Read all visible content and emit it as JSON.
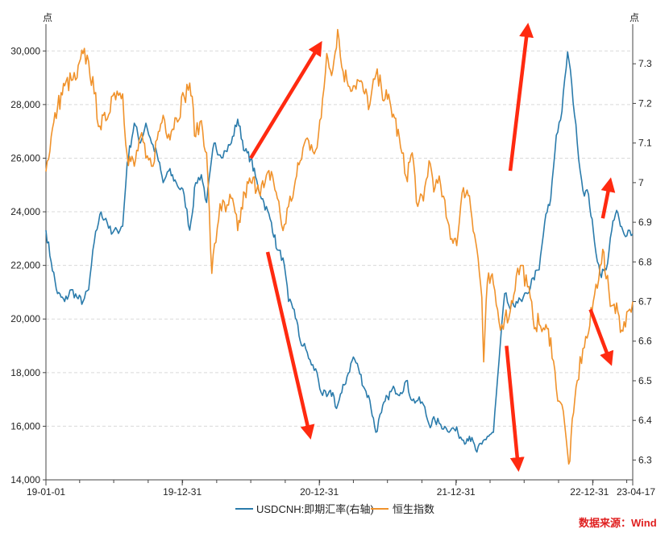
{
  "chart_data": {
    "type": "line",
    "left_unit": "点",
    "right_unit": "点",
    "left_axis": {
      "min": 14000,
      "max": 31000,
      "ticks": [
        {
          "v": 14000,
          "label": "14,000"
        },
        {
          "v": 16000,
          "label": "16,000"
        },
        {
          "v": 18000,
          "label": "18,000"
        },
        {
          "v": 20000,
          "label": "20,000"
        },
        {
          "v": 22000,
          "label": "22,000"
        },
        {
          "v": 24000,
          "label": "24,000"
        },
        {
          "v": 26000,
          "label": "26,000"
        },
        {
          "v": 28000,
          "label": "28,000"
        },
        {
          "v": 30000,
          "label": "30,000"
        }
      ]
    },
    "right_axis": {
      "min": 6.25,
      "max": 7.4,
      "ticks": [
        {
          "v": 6.3,
          "label": "6.3"
        },
        {
          "v": 6.4,
          "label": "6.4"
        },
        {
          "v": 6.5,
          "label": "6.5"
        },
        {
          "v": 6.6,
          "label": "6.6"
        },
        {
          "v": 6.7,
          "label": "6.7"
        },
        {
          "v": 6.8,
          "label": "6.8"
        },
        {
          "v": 6.9,
          "label": "6.9"
        },
        {
          "v": 7,
          "label": "7"
        },
        {
          "v": 7.1,
          "label": "7.1"
        },
        {
          "v": 7.2,
          "label": "7.2"
        },
        {
          "v": 7.3,
          "label": "7.3"
        }
      ]
    },
    "x_axis": {
      "start": "2019-01-01",
      "end": "2023-04-17",
      "ticks": [
        {
          "date": "2019-01-01",
          "label": "19-01-01"
        },
        {
          "date": "2019-12-31",
          "label": "19-12-31"
        },
        {
          "date": "2020-12-31",
          "label": "20-12-31"
        },
        {
          "date": "2021-12-31",
          "label": "21-12-31"
        },
        {
          "date": "2022-12-31",
          "label": "22-12-31"
        },
        {
          "date": "2023-04-17",
          "label": "23-04-17"
        }
      ]
    },
    "grid": "horizontal-dashed",
    "legend_position": "bottom",
    "series": [
      {
        "name": "USDCNH:即期汇率(右轴)",
        "axis": "right",
        "color": "#2a7bab",
        "points": [
          [
            "2019-01-01",
            6.88
          ],
          [
            "2019-01-15",
            6.8
          ],
          [
            "2019-02-01",
            6.72
          ],
          [
            "2019-02-20",
            6.7
          ],
          [
            "2019-03-10",
            6.73
          ],
          [
            "2019-03-25",
            6.71
          ],
          [
            "2019-04-10",
            6.7
          ],
          [
            "2019-04-25",
            6.73
          ],
          [
            "2019-05-10",
            6.85
          ],
          [
            "2019-05-25",
            6.92
          ],
          [
            "2019-06-10",
            6.91
          ],
          [
            "2019-06-25",
            6.87
          ],
          [
            "2019-07-10",
            6.88
          ],
          [
            "2019-07-25",
            6.89
          ],
          [
            "2019-08-06",
            7.05
          ],
          [
            "2019-08-25",
            7.15
          ],
          [
            "2019-09-10",
            7.1
          ],
          [
            "2019-09-25",
            7.15
          ],
          [
            "2019-10-10",
            7.1
          ],
          [
            "2019-10-25",
            7.07
          ],
          [
            "2019-11-10",
            7.0
          ],
          [
            "2019-11-25",
            7.03
          ],
          [
            "2019-12-15",
            7.0
          ],
          [
            "2020-01-05",
            6.97
          ],
          [
            "2020-01-20",
            6.88
          ],
          [
            "2020-02-05",
            7.0
          ],
          [
            "2020-02-20",
            7.02
          ],
          [
            "2020-03-05",
            6.95
          ],
          [
            "2020-03-25",
            7.1
          ],
          [
            "2020-04-10",
            7.07
          ],
          [
            "2020-04-25",
            7.08
          ],
          [
            "2020-05-10",
            7.1
          ],
          [
            "2020-05-27",
            7.16
          ],
          [
            "2020-06-15",
            7.08
          ],
          [
            "2020-07-01",
            7.06
          ],
          [
            "2020-07-20",
            6.99
          ],
          [
            "2020-08-05",
            6.95
          ],
          [
            "2020-08-25",
            6.9
          ],
          [
            "2020-09-10",
            6.83
          ],
          [
            "2020-09-25",
            6.81
          ],
          [
            "2020-10-10",
            6.7
          ],
          [
            "2020-10-25",
            6.68
          ],
          [
            "2020-11-10",
            6.6
          ],
          [
            "2020-11-25",
            6.58
          ],
          [
            "2020-12-10",
            6.54
          ],
          [
            "2020-12-25",
            6.52
          ],
          [
            "2021-01-05",
            6.47
          ],
          [
            "2021-01-20",
            6.46
          ],
          [
            "2021-02-05",
            6.47
          ],
          [
            "2021-02-15",
            6.43
          ],
          [
            "2021-03-01",
            6.47
          ],
          [
            "2021-03-15",
            6.51
          ],
          [
            "2021-04-01",
            6.56
          ],
          [
            "2021-04-15",
            6.53
          ],
          [
            "2021-05-01",
            6.48
          ],
          [
            "2021-05-15",
            6.45
          ],
          [
            "2021-05-31",
            6.37
          ],
          [
            "2021-06-15",
            6.42
          ],
          [
            "2021-07-01",
            6.46
          ],
          [
            "2021-07-20",
            6.48
          ],
          [
            "2021-08-05",
            6.47
          ],
          [
            "2021-08-20",
            6.5
          ],
          [
            "2021-09-05",
            6.45
          ],
          [
            "2021-09-20",
            6.45
          ],
          [
            "2021-10-05",
            6.44
          ],
          [
            "2021-10-20",
            6.39
          ],
          [
            "2021-11-05",
            6.4
          ],
          [
            "2021-11-20",
            6.39
          ],
          [
            "2021-12-05",
            6.38
          ],
          [
            "2021-12-20",
            6.38
          ],
          [
            "2022-01-05",
            6.37
          ],
          [
            "2022-01-20",
            6.35
          ],
          [
            "2022-02-05",
            6.36
          ],
          [
            "2022-02-25",
            6.32
          ],
          [
            "2022-03-10",
            6.34
          ],
          [
            "2022-03-25",
            6.36
          ],
          [
            "2022-04-10",
            6.37
          ],
          [
            "2022-04-25",
            6.55
          ],
          [
            "2022-05-10",
            6.72
          ],
          [
            "2022-05-25",
            6.68
          ],
          [
            "2022-06-10",
            6.7
          ],
          [
            "2022-06-25",
            6.7
          ],
          [
            "2022-07-10",
            6.72
          ],
          [
            "2022-07-25",
            6.76
          ],
          [
            "2022-08-10",
            6.78
          ],
          [
            "2022-08-25",
            6.9
          ],
          [
            "2022-09-10",
            6.96
          ],
          [
            "2022-09-25",
            7.12
          ],
          [
            "2022-10-10",
            7.18
          ],
          [
            "2022-10-25",
            7.33
          ],
          [
            "2022-11-05",
            7.25
          ],
          [
            "2022-11-20",
            7.1
          ],
          [
            "2022-12-05",
            6.98
          ],
          [
            "2022-12-20",
            6.97
          ],
          [
            "2023-01-05",
            6.85
          ],
          [
            "2023-01-20",
            6.77
          ],
          [
            "2023-02-05",
            6.78
          ],
          [
            "2023-02-20",
            6.88
          ],
          [
            "2023-03-05",
            6.93
          ],
          [
            "2023-03-15",
            6.89
          ],
          [
            "2023-03-25",
            6.87
          ],
          [
            "2023-04-05",
            6.88
          ],
          [
            "2023-04-17",
            6.87
          ]
        ]
      },
      {
        "name": "恒生指数",
        "axis": "left",
        "color": "#f0922b",
        "points": [
          [
            "2019-01-01",
            25500
          ],
          [
            "2019-01-15",
            26800
          ],
          [
            "2019-02-01",
            27900
          ],
          [
            "2019-02-20",
            28700
          ],
          [
            "2019-03-10",
            28900
          ],
          [
            "2019-03-25",
            29000
          ],
          [
            "2019-04-10",
            29900
          ],
          [
            "2019-04-25",
            29600
          ],
          [
            "2019-05-10",
            28400
          ],
          [
            "2019-05-25",
            27200
          ],
          [
            "2019-06-10",
            27400
          ],
          [
            "2019-06-25",
            28300
          ],
          [
            "2019-07-10",
            28500
          ],
          [
            "2019-07-25",
            28400
          ],
          [
            "2019-08-06",
            26100
          ],
          [
            "2019-08-25",
            25700
          ],
          [
            "2019-09-10",
            26800
          ],
          [
            "2019-09-25",
            26000
          ],
          [
            "2019-10-10",
            25700
          ],
          [
            "2019-10-25",
            26700
          ],
          [
            "2019-11-10",
            27600
          ],
          [
            "2019-11-25",
            26900
          ],
          [
            "2019-12-15",
            27500
          ],
          [
            "2020-01-05",
            28300
          ],
          [
            "2020-01-20",
            28800
          ],
          [
            "2020-02-05",
            26800
          ],
          [
            "2020-02-20",
            27400
          ],
          [
            "2020-03-05",
            26200
          ],
          [
            "2020-03-19",
            21700
          ],
          [
            "2020-04-10",
            24300
          ],
          [
            "2020-04-25",
            24000
          ],
          [
            "2020-05-10",
            24500
          ],
          [
            "2020-05-27",
            23300
          ],
          [
            "2020-06-15",
            24700
          ],
          [
            "2020-07-01",
            25100
          ],
          [
            "2020-07-20",
            25000
          ],
          [
            "2020-08-05",
            24900
          ],
          [
            "2020-08-25",
            25500
          ],
          [
            "2020-09-10",
            24500
          ],
          [
            "2020-09-25",
            23300
          ],
          [
            "2020-10-10",
            24200
          ],
          [
            "2020-10-25",
            24900
          ],
          [
            "2020-11-10",
            25900
          ],
          [
            "2020-11-25",
            26700
          ],
          [
            "2020-12-10",
            26500
          ],
          [
            "2020-12-25",
            26400
          ],
          [
            "2021-01-05",
            27500
          ],
          [
            "2021-01-20",
            29900
          ],
          [
            "2021-02-05",
            29300
          ],
          [
            "2021-02-18",
            30800
          ],
          [
            "2021-03-01",
            29400
          ],
          [
            "2021-03-15",
            28900
          ],
          [
            "2021-04-01",
            28700
          ],
          [
            "2021-04-15",
            28900
          ],
          [
            "2021-05-01",
            28400
          ],
          [
            "2021-05-15",
            28000
          ],
          [
            "2021-05-31",
            29100
          ],
          [
            "2021-06-15",
            28600
          ],
          [
            "2021-07-01",
            28200
          ],
          [
            "2021-07-20",
            27500
          ],
          [
            "2021-08-05",
            26400
          ],
          [
            "2021-08-20",
            25300
          ],
          [
            "2021-09-05",
            26200
          ],
          [
            "2021-09-20",
            24200
          ],
          [
            "2021-10-05",
            24400
          ],
          [
            "2021-10-20",
            25900
          ],
          [
            "2021-11-05",
            24900
          ],
          [
            "2021-11-20",
            25000
          ],
          [
            "2021-12-05",
            23800
          ],
          [
            "2021-12-20",
            23000
          ],
          [
            "2022-01-05",
            23100
          ],
          [
            "2022-01-20",
            24900
          ],
          [
            "2022-02-05",
            24600
          ],
          [
            "2022-02-25",
            22600
          ],
          [
            "2022-03-10",
            20800
          ],
          [
            "2022-03-15",
            18400
          ],
          [
            "2022-03-25",
            21400
          ],
          [
            "2022-04-10",
            21300
          ],
          [
            "2022-04-25",
            19900
          ],
          [
            "2022-05-10",
            20000
          ],
          [
            "2022-05-25",
            20300
          ],
          [
            "2022-06-10",
            21600
          ],
          [
            "2022-06-25",
            22000
          ],
          [
            "2022-07-10",
            21200
          ],
          [
            "2022-07-25",
            20000
          ],
          [
            "2022-08-10",
            19800
          ],
          [
            "2022-08-25",
            19600
          ],
          [
            "2022-09-10",
            19300
          ],
          [
            "2022-09-25",
            17400
          ],
          [
            "2022-10-10",
            16800
          ],
          [
            "2022-10-25",
            15000
          ],
          [
            "2022-10-31",
            14700
          ],
          [
            "2022-11-10",
            16500
          ],
          [
            "2022-11-20",
            17700
          ],
          [
            "2022-12-05",
            18900
          ],
          [
            "2022-12-20",
            19500
          ],
          [
            "2023-01-05",
            20900
          ],
          [
            "2023-01-20",
            22000
          ],
          [
            "2023-01-27",
            22600
          ],
          [
            "2023-02-05",
            21500
          ],
          [
            "2023-02-20",
            20500
          ],
          [
            "2023-03-05",
            20600
          ],
          [
            "2023-03-15",
            19500
          ],
          [
            "2023-03-25",
            19900
          ],
          [
            "2023-04-05",
            20300
          ],
          [
            "2023-04-17",
            20650
          ]
        ]
      }
    ],
    "arrows": [
      {
        "from": [
          "2020-07-01",
          26000
        ],
        "to": [
          "2020-12-31",
          30200
        ]
      },
      {
        "from": [
          "2020-08-15",
          22500
        ],
        "to": [
          "2020-12-05",
          15700
        ]
      },
      {
        "from": [
          "2022-05-15",
          19000
        ],
        "to": [
          "2022-06-15",
          14500
        ]
      },
      {
        "from": [
          "2022-05-25",
          7.03
        ],
        "to": [
          "2022-07-10",
          7.39
        ]
      },
      {
        "from": [
          "2023-01-27",
          6.91
        ],
        "to": [
          "2023-02-15",
          7.0
        ]
      },
      {
        "from": [
          "2022-12-25",
          6.68
        ],
        "to": [
          "2023-02-15",
          6.55
        ]
      }
    ]
  },
  "legend": {
    "item1": "USDCNH:即期汇率(右轴)",
    "item2": "恒生指数"
  },
  "source": "数据来源：Wind",
  "colors": {
    "hsi": "#f0922b",
    "usdcnh": "#2a7bab",
    "arrow": "#ff2a10",
    "source": "#e02020"
  }
}
